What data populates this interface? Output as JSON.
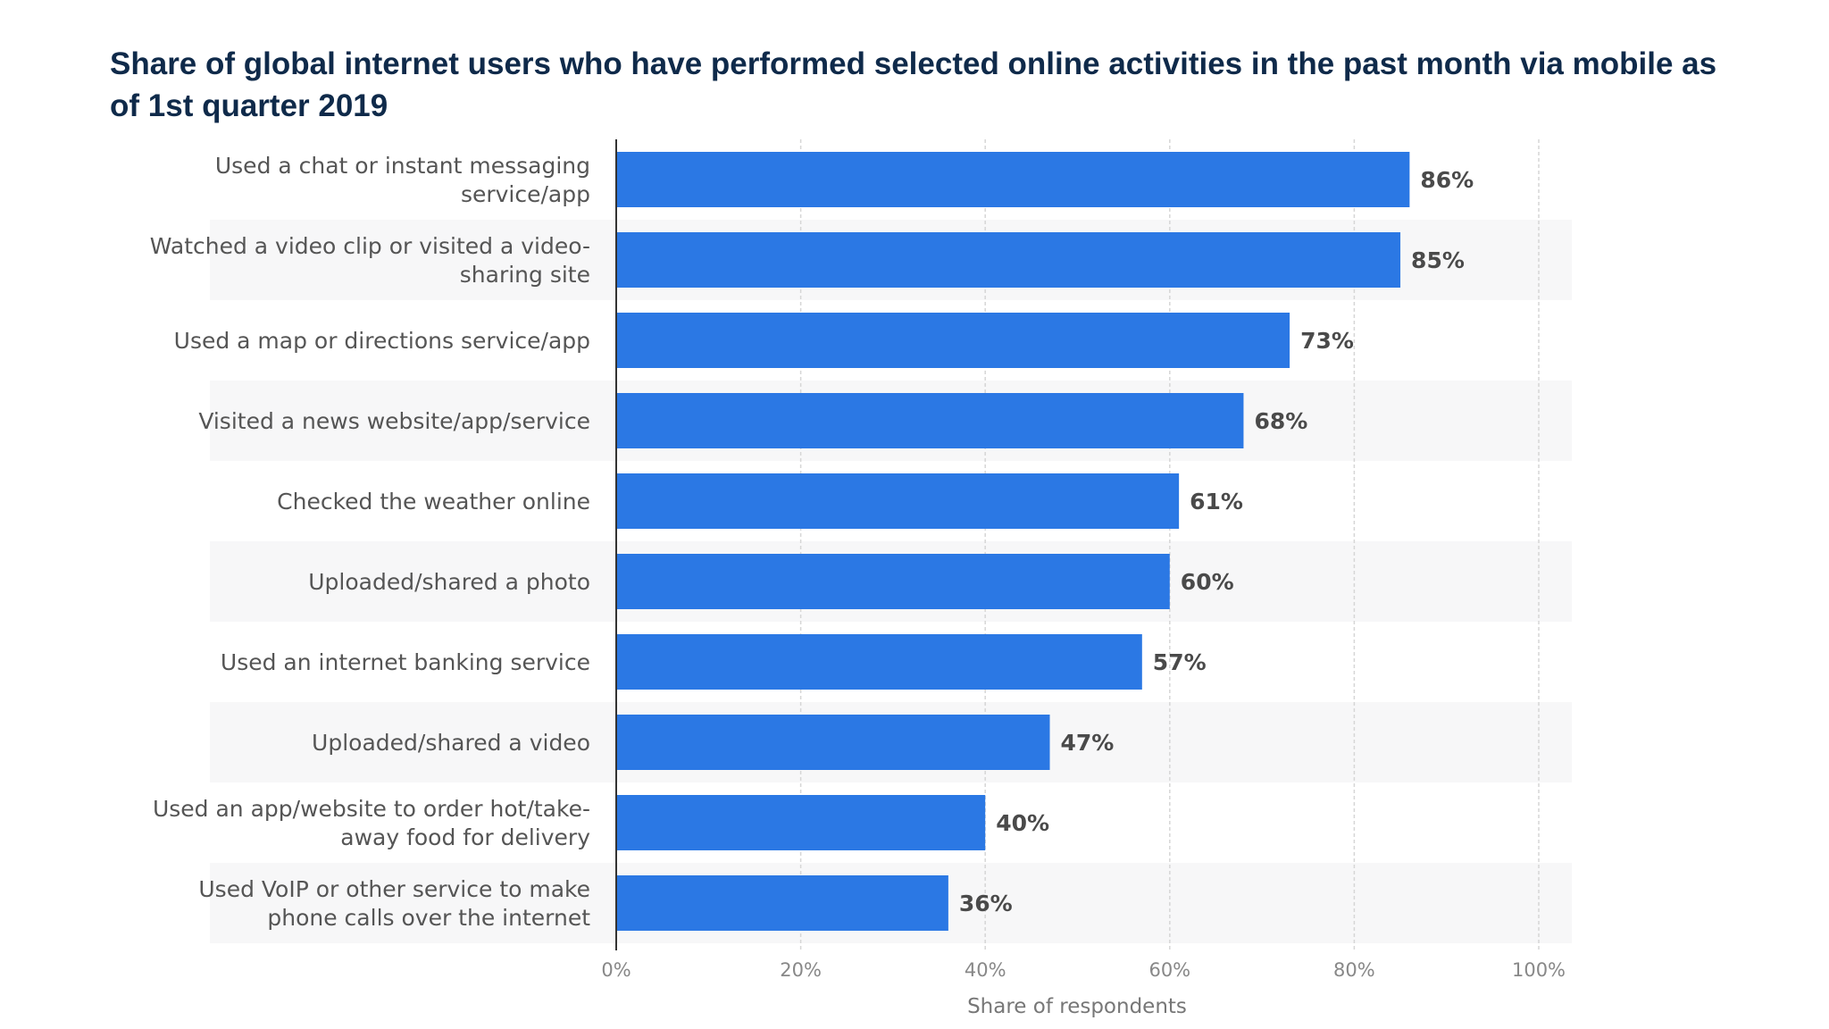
{
  "chart_data": {
    "type": "bar",
    "orientation": "horizontal",
    "title": "Share of global internet users who have performed selected online activities in the past month via mobile as of 1st quarter 2019",
    "xlabel": "Share of respondents",
    "ylabel": "",
    "xlim": [
      0,
      100
    ],
    "x_ticks": [
      "0%",
      "20%",
      "40%",
      "60%",
      "80%",
      "100%"
    ],
    "grid": "vertical dashed",
    "colors": {
      "bar": "#2b78e4",
      "stripe": "#f7f7f8"
    },
    "categories": [
      [
        "Used a chat or instant messaging",
        "service/app"
      ],
      [
        "Watched a video clip or visited a video-",
        "sharing site"
      ],
      [
        "Used a map or directions service/app"
      ],
      [
        "Visited a news website/app/service"
      ],
      [
        "Checked the weather online"
      ],
      [
        "Uploaded/shared a photo"
      ],
      [
        "Used an internet banking service"
      ],
      [
        "Uploaded/shared a video"
      ],
      [
        "Used an app/website to order hot/take-",
        "away food for delivery"
      ],
      [
        "Used VoIP or other service to make",
        "phone calls over the internet"
      ]
    ],
    "values": [
      86,
      85,
      73,
      68,
      61,
      60,
      57,
      47,
      40,
      36
    ],
    "value_labels": [
      "86%",
      "85%",
      "73%",
      "68%",
      "61%",
      "60%",
      "57%",
      "47%",
      "40%",
      "36%"
    ]
  }
}
